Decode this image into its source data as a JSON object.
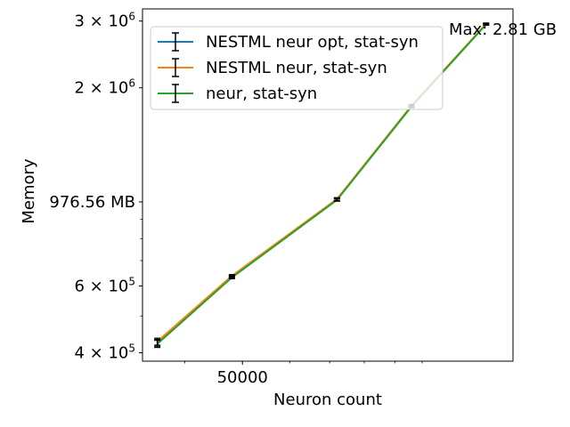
{
  "chart_data": {
    "type": "line",
    "title": "",
    "xlabel": "Neuron count",
    "ylabel": "Memory",
    "x_scale": "log",
    "y_scale": "log",
    "xlim": [
      34000,
      142000
    ],
    "ylim": [
      380000,
      3230000
    ],
    "grid": false,
    "legend_position": "top-left",
    "x_ticks": [
      {
        "value": 50000,
        "label": "50000"
      }
    ],
    "y_ticks": [
      {
        "value": 400000,
        "base": "4",
        "exp": "5"
      },
      {
        "value": 600000,
        "base": "6",
        "exp": "5"
      },
      {
        "value": 1000000,
        "label": "976.56 MB"
      },
      {
        "value": 2000000,
        "base": "2",
        "exp": "6"
      },
      {
        "value": 3000000,
        "base": "3",
        "exp": "6"
      }
    ],
    "annotation": "Max: 2.81 GB",
    "x": [
      36000,
      48000,
      72000,
      96000,
      128000
    ],
    "series": [
      {
        "name": "NESTML neur opt, stat-syn",
        "color": "#1f77b4",
        "values": [
          425000,
          635000,
          1015000,
          1790000,
          2945000
        ],
        "errors": [
          9000,
          5000,
          8000,
          12000,
          15000
        ]
      },
      {
        "name": "NESTML neur, stat-syn",
        "color": "#ff7f0e",
        "values": [
          428000,
          638000,
          1018000,
          1795000,
          2950000
        ],
        "errors": [
          9000,
          5000,
          8000,
          12000,
          15000
        ]
      },
      {
        "name": "neur, stat-syn",
        "color": "#2ca02c",
        "values": [
          422000,
          632000,
          1012000,
          1785000,
          2940000
        ],
        "errors": [
          9000,
          5000,
          8000,
          12000,
          15000
        ]
      }
    ]
  }
}
